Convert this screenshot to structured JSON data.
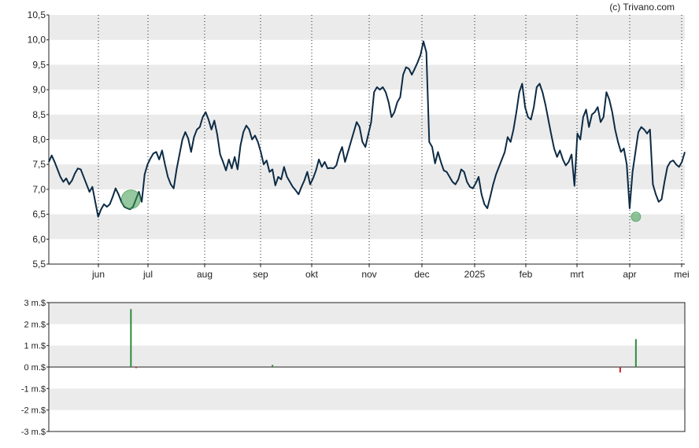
{
  "credit": "(c) Trivano.com",
  "colors": {
    "price_line": "#0d2b45",
    "band": "#ebebeb",
    "grid": "#222222",
    "axis": "#222222",
    "bubble_fill": "#3e9b4e",
    "volume_positive": "#2e8b3a",
    "volume_negative": "#cc2222"
  },
  "chart_data": [
    {
      "type": "line",
      "title": "",
      "xlabel": "",
      "ylabel": "",
      "ylim": [
        5.5,
        10.5
      ],
      "yticks": [
        "5,5",
        "6,0",
        "6,5",
        "7,0",
        "7,5",
        "8,0",
        "8,5",
        "9,0",
        "9,5",
        "10,0",
        "10,5"
      ],
      "x_tick_labels": [
        "jun",
        "jul",
        "aug",
        "sep",
        "okt",
        "nov",
        "dec",
        "2025",
        "feb",
        "mrt",
        "apr",
        "mei"
      ],
      "x_range": [
        "2024-05-03",
        "2025-05-02"
      ],
      "grid": "horizontal bands, dotted vertical lines at month starts",
      "series": [
        {
          "values": [
            7.55,
            7.68,
            7.55,
            7.4,
            7.25,
            7.15,
            7.22,
            7.1,
            7.18,
            7.32,
            7.42,
            7.4,
            7.25,
            7.1,
            6.95,
            7.05,
            6.75,
            6.45,
            6.6,
            6.7,
            6.65,
            6.7,
            6.85,
            7.02,
            6.9,
            6.75,
            6.65,
            6.62,
            6.6,
            6.65,
            6.8,
            6.95,
            6.75,
            7.3,
            7.5,
            7.62,
            7.72,
            7.75,
            7.6,
            7.78,
            7.5,
            7.25,
            7.1,
            7.02,
            7.4,
            7.7,
            8.0,
            8.15,
            8.02,
            7.75,
            8.05,
            8.2,
            8.25,
            8.45,
            8.55,
            8.4,
            8.2,
            8.38,
            8.1,
            7.7,
            7.55,
            7.38,
            7.6,
            7.42,
            7.65,
            7.4,
            7.88,
            8.15,
            8.28,
            8.2,
            8.0,
            8.08,
            7.95,
            7.75,
            7.5,
            7.58,
            7.35,
            7.4,
            7.08,
            7.25,
            7.2,
            7.45,
            7.25,
            7.15,
            7.05,
            6.98,
            6.9,
            7.05,
            7.18,
            7.35,
            7.1,
            7.22,
            7.38,
            7.6,
            7.45,
            7.55,
            7.42,
            7.43,
            7.42,
            7.48,
            7.7,
            7.85,
            7.55,
            7.75,
            7.95,
            8.15,
            8.35,
            8.25,
            7.95,
            7.85,
            8.1,
            8.35,
            8.95,
            9.05,
            9.0,
            9.05,
            8.95,
            8.75,
            8.45,
            8.55,
            8.75,
            8.85,
            9.3,
            9.45,
            9.42,
            9.3,
            9.42,
            9.55,
            9.7,
            9.97,
            9.75,
            7.95,
            7.85,
            7.52,
            7.75,
            7.55,
            7.38,
            7.35,
            7.25,
            7.15,
            7.1,
            7.2,
            7.4,
            7.35,
            7.15,
            7.05,
            7.02,
            7.12,
            7.25,
            6.9,
            6.7,
            6.62,
            6.85,
            7.1,
            7.3,
            7.45,
            7.6,
            7.75,
            8.05,
            7.95,
            8.2,
            8.55,
            8.95,
            9.12,
            8.65,
            8.45,
            8.4,
            8.65,
            9.05,
            9.12,
            8.95,
            8.7,
            8.4,
            8.1,
            7.82,
            7.65,
            7.78,
            7.6,
            7.48,
            7.55,
            7.7,
            7.07,
            8.12,
            8.0,
            8.45,
            8.6,
            8.25,
            8.5,
            8.55,
            8.65,
            8.35,
            8.45,
            8.95,
            8.8,
            8.55,
            8.2,
            7.95,
            7.75,
            7.82,
            7.5,
            6.62,
            7.35,
            7.75,
            8.15,
            8.25,
            8.2,
            8.12,
            8.2,
            7.1,
            6.9,
            6.75,
            6.8,
            7.15,
            7.45,
            7.55,
            7.58,
            7.5,
            7.45,
            7.55,
            7.75
          ]
        }
      ],
      "bubbles": [
        {
          "date": "2024-06-19",
          "price": 6.8,
          "size": "large"
        },
        {
          "date": "2025-04-04",
          "price": 6.45,
          "size": "small"
        }
      ]
    },
    {
      "type": "bar",
      "title": "",
      "xlabel": "",
      "ylabel": "",
      "ylim": [
        -3,
        3
      ],
      "yticks": [
        "-3 m.$",
        "-2 m.$",
        "-1 m.$",
        "0 m.$",
        "1 m.$",
        "2 m.$",
        "3 m.$"
      ],
      "grid": "horizontal bands",
      "series": [
        {
          "dates": [
            "2024-06-19",
            "2024-06-22",
            "2024-09-08",
            "2025-03-26",
            "2025-04-04"
          ],
          "values": [
            2.7,
            -0.05,
            0.1,
            -0.25,
            1.3
          ]
        }
      ]
    }
  ]
}
